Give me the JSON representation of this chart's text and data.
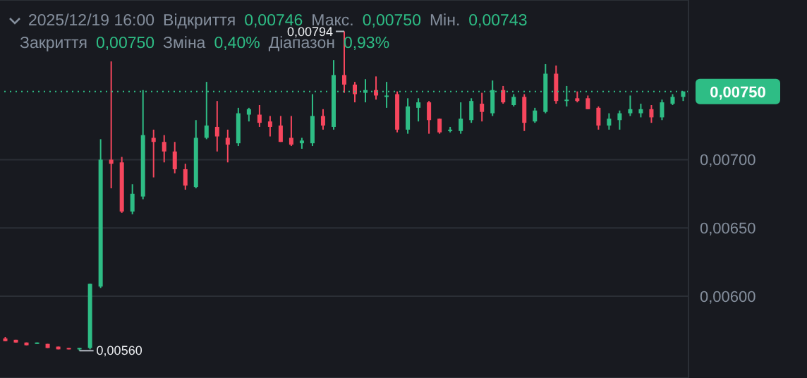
{
  "chart_data": {
    "type": "candlestick",
    "categories": [
      null,
      null,
      null,
      null,
      null,
      null,
      null,
      null,
      null,
      null,
      null,
      null,
      null,
      null,
      null,
      null,
      null,
      null,
      null,
      null,
      null,
      null,
      null,
      null,
      null,
      null,
      null,
      null,
      null,
      null,
      null,
      null,
      null,
      null,
      null,
      null,
      null,
      null,
      null,
      null,
      null,
      null,
      null,
      null,
      null,
      null,
      null,
      null,
      null,
      null,
      null,
      null,
      null,
      null,
      null,
      null,
      null,
      null,
      null,
      null,
      null,
      null,
      null,
      null,
      null
    ],
    "ohlc": [
      [
        0.00569,
        0.0057,
        0.00567,
        0.00567
      ],
      [
        0.00568,
        0.00568,
        0.00566,
        0.00566
      ],
      [
        0.00566,
        0.00566,
        0.00564,
        0.00564
      ],
      [
        0.00565,
        0.00566,
        0.00565,
        0.00566
      ],
      [
        0.00565,
        0.00565,
        0.00562,
        0.00562
      ],
      [
        0.00563,
        0.00563,
        0.00561,
        0.00561
      ],
      [
        0.00562,
        0.00562,
        0.00561,
        0.00561
      ],
      [
        0.00561,
        0.00562,
        0.0056,
        0.00562
      ],
      [
        0.00562,
        0.00609,
        0.00561,
        0.00609
      ],
      [
        0.00607,
        0.00715,
        0.00606,
        0.007
      ],
      [
        0.007,
        0.00772,
        0.00679,
        0.00697
      ],
      [
        0.00698,
        0.00702,
        0.00661,
        0.00662
      ],
      [
        0.00662,
        0.00682,
        0.0066,
        0.00675
      ],
      [
        0.00673,
        0.00751,
        0.00671,
        0.00718
      ],
      [
        0.00716,
        0.00722,
        0.00687,
        0.00713
      ],
      [
        0.00713,
        0.00718,
        0.00698,
        0.00706
      ],
      [
        0.00706,
        0.00713,
        0.0069,
        0.00693
      ],
      [
        0.00693,
        0.00697,
        0.00678,
        0.00681
      ],
      [
        0.0068,
        0.00729,
        0.00679,
        0.00716
      ],
      [
        0.00716,
        0.00757,
        0.00715,
        0.00725
      ],
      [
        0.00724,
        0.00743,
        0.00706,
        0.00717
      ],
      [
        0.00716,
        0.00722,
        0.00698,
        0.00711
      ],
      [
        0.00712,
        0.00738,
        0.0071,
        0.00734
      ],
      [
        0.00733,
        0.00738,
        0.00728,
        0.00737
      ],
      [
        0.00733,
        0.0074,
        0.00724,
        0.00727
      ],
      [
        0.00728,
        0.00732,
        0.00717,
        0.00724
      ],
      [
        0.00725,
        0.00732,
        0.00713,
        0.00713
      ],
      [
        0.00716,
        0.00732,
        0.0071,
        0.00711
      ],
      [
        0.00712,
        0.00716,
        0.00708,
        0.00714
      ],
      [
        0.00712,
        0.00748,
        0.0071,
        0.00732
      ],
      [
        0.00732,
        0.00737,
        0.00722,
        0.00725
      ],
      [
        0.00724,
        0.00773,
        0.00722,
        0.00762
      ],
      [
        0.00762,
        0.00794,
        0.00749,
        0.00755
      ],
      [
        0.00755,
        0.00757,
        0.00742,
        0.00748
      ],
      [
        0.00749,
        0.00759,
        0.00742,
        0.00751
      ],
      [
        0.00751,
        0.00761,
        0.00744,
        0.00747
      ],
      [
        0.00746,
        0.00757,
        0.00738,
        0.00747
      ],
      [
        0.00748,
        0.0075,
        0.0072,
        0.00722
      ],
      [
        0.00722,
        0.00745,
        0.00719,
        0.00739
      ],
      [
        0.00738,
        0.00745,
        0.00728,
        0.00742
      ],
      [
        0.00742,
        0.00743,
        0.00719,
        0.00729
      ],
      [
        0.0073,
        0.0073,
        0.00719,
        0.0072
      ],
      [
        0.00721,
        0.00724,
        0.0072,
        0.00722
      ],
      [
        0.00721,
        0.00742,
        0.00719,
        0.0073
      ],
      [
        0.00729,
        0.00745,
        0.00727,
        0.00743
      ],
      [
        0.00741,
        0.00749,
        0.00728,
        0.00735
      ],
      [
        0.00734,
        0.00758,
        0.00732,
        0.00751
      ],
      [
        0.00751,
        0.00754,
        0.00741,
        0.00742
      ],
      [
        0.0074,
        0.00748,
        0.00739,
        0.00746
      ],
      [
        0.00746,
        0.00748,
        0.00721,
        0.00727
      ],
      [
        0.00728,
        0.00738,
        0.00727,
        0.00736
      ],
      [
        0.00735,
        0.0077,
        0.00734,
        0.00763
      ],
      [
        0.00763,
        0.00769,
        0.00741,
        0.00743
      ],
      [
        0.00743,
        0.00754,
        0.00739,
        0.00744
      ],
      [
        0.00745,
        0.0075,
        0.00742,
        0.00743
      ],
      [
        0.00745,
        0.00747,
        0.00737,
        0.00737
      ],
      [
        0.00738,
        0.00739,
        0.00722,
        0.00725
      ],
      [
        0.00725,
        0.00734,
        0.00722,
        0.0073
      ],
      [
        0.00729,
        0.00736,
        0.00722,
        0.00734
      ],
      [
        0.00734,
        0.00747,
        0.00732,
        0.00737
      ],
      [
        0.00734,
        0.00741,
        0.00731,
        0.00737
      ],
      [
        0.00737,
        0.0074,
        0.00727,
        0.00731
      ],
      [
        0.00731,
        0.00744,
        0.00729,
        0.00742
      ],
      [
        0.00741,
        0.00748,
        0.0074,
        0.00746
      ],
      [
        0.00746,
        0.0075,
        0.00743,
        0.0075
      ]
    ],
    "ylim": [
      0.0054,
      0.00817
    ],
    "yticks": [
      {
        "value": 0.006,
        "label": "0,00600"
      },
      {
        "value": 0.0065,
        "label": "0,00650"
      },
      {
        "value": 0.007,
        "label": "0,00700"
      }
    ],
    "grid": "y",
    "tick_labels": "y",
    "ref_lines": [
      {
        "axis": "y",
        "value": 0.0075,
        "label": "0,00750",
        "color": "#2ebd85",
        "line_style": "dotted"
      }
    ],
    "annotations": [
      "2025/12/19 16:00",
      "Відкриття",
      "0,00746",
      "Макс.",
      "0,00750",
      "Мін.",
      "0,00743",
      "Закриття",
      "0,00750",
      "Зміна",
      "0,40%",
      "Діапазон",
      "0,93%",
      "0,00794",
      "0,00560"
    ]
  }
}
